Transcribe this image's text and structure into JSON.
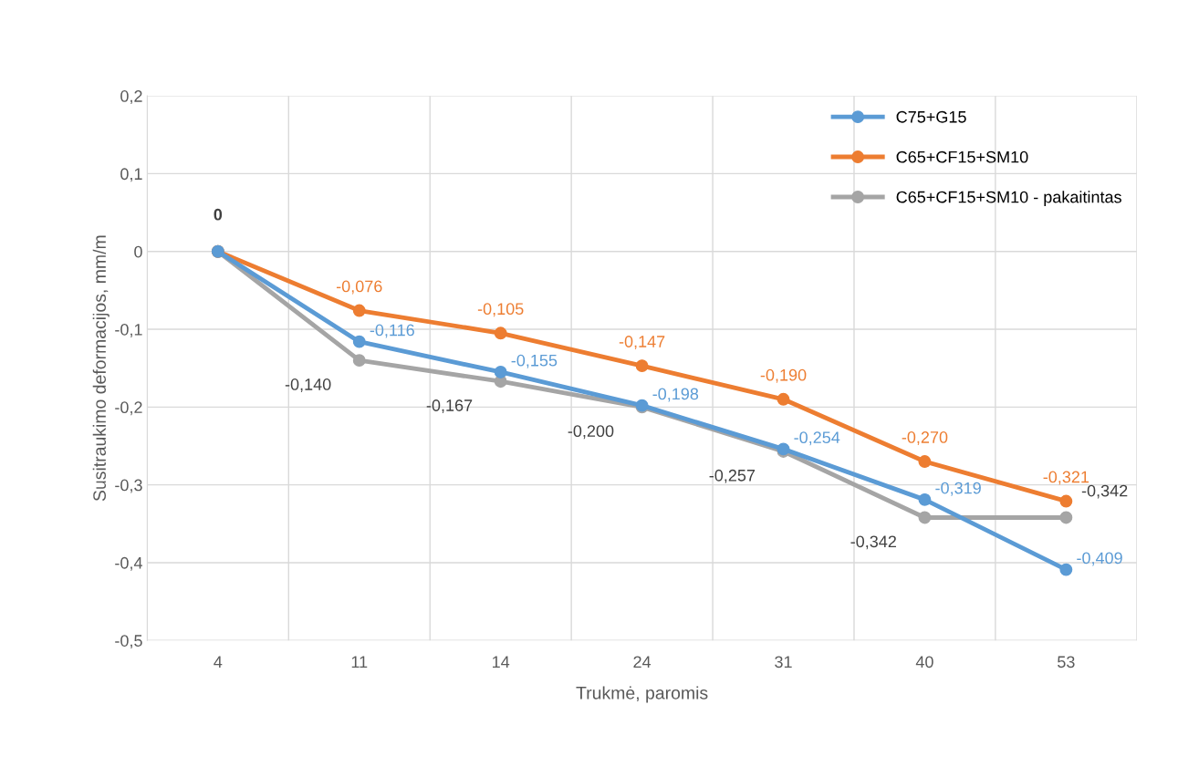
{
  "chart_data": {
    "type": "line",
    "xlabel": "Trukmė, paromis",
    "ylabel": "Susitraukimo deformacijos, mm/m",
    "categories": [
      "4",
      "11",
      "14",
      "24",
      "31",
      "40",
      "53"
    ],
    "series": [
      {
        "name": "C75+G15",
        "color": "#5b9bd5",
        "values": [
          0,
          -0.116,
          -0.155,
          -0.198,
          -0.254,
          -0.319,
          -0.409
        ],
        "value_labels": [
          null,
          "-0,116",
          "-0,155",
          "-0,198",
          "-0,254",
          "-0,319",
          "-0,409"
        ]
      },
      {
        "name": "C65+CF15+SM10",
        "color": "#ed7d31",
        "values": [
          0,
          -0.076,
          -0.105,
          -0.147,
          -0.19,
          -0.27,
          -0.321
        ],
        "value_labels": [
          null,
          "-0,076",
          "-0,105",
          "-0,147",
          "-0,190",
          "-0,270",
          "-0,321"
        ]
      },
      {
        "name": "C65+CF15+SM10 - pakaitintas",
        "color": "#a5a5a5",
        "values": [
          0,
          -0.14,
          -0.167,
          -0.2,
          -0.257,
          -0.342,
          -0.342
        ],
        "value_labels": [
          "0",
          "-0,140",
          "-0,167",
          "-0,200",
          "-0,257",
          "-0,342",
          "-0,342"
        ]
      }
    ],
    "ylim": [
      -0.5,
      0.2
    ],
    "yticks": [
      {
        "value": -0.5,
        "label": "-0,5"
      },
      {
        "value": -0.4,
        "label": "-0,4"
      },
      {
        "value": -0.3,
        "label": "-0,3"
      },
      {
        "value": -0.2,
        "label": "-0,2"
      },
      {
        "value": -0.1,
        "label": "-0,1"
      },
      {
        "value": 0,
        "label": "0"
      },
      {
        "value": 0.1,
        "label": "0,1"
      },
      {
        "value": 0.2,
        "label": "0,2"
      }
    ],
    "grid": true,
    "legend": "top right",
    "marker": "circle",
    "line_style": "solid"
  }
}
